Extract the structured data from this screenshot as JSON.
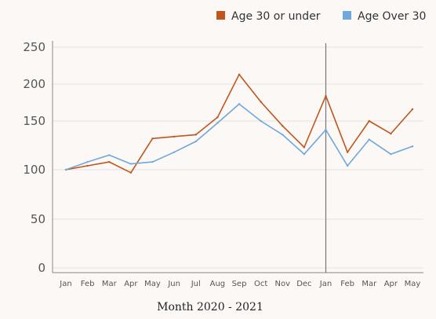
{
  "chart_data": {
    "type": "line",
    "xlabel": "Month 2020 - 2021",
    "categories": [
      "Jan",
      "Feb",
      "Mar",
      "Apr",
      "May",
      "Jun",
      "Jul",
      "Aug",
      "Sep",
      "Oct",
      "Nov",
      "Dec",
      "Jan",
      "Feb",
      "Mar",
      "Apr",
      "May"
    ],
    "y_ticks": [
      "0",
      "50",
      "100",
      "150",
      "200",
      "250"
    ],
    "y_tick_values": [
      0,
      50,
      100,
      150,
      200,
      250
    ],
    "ylim": [
      0,
      250
    ],
    "grid": true,
    "legend_position": "top-right",
    "series": [
      {
        "name": "Age 30 or under",
        "color": "#c0561d",
        "values": [
          100,
          104,
          108,
          97,
          132,
          134,
          136,
          155,
          213,
          176,
          145,
          123,
          184,
          118,
          150,
          137,
          166
        ]
      },
      {
        "name": "Age Over 30",
        "color": "#6fa8dc",
        "values": [
          100,
          108,
          115,
          106,
          108,
          118,
          129,
          148,
          173,
          150,
          136,
          116,
          141,
          104,
          131,
          116,
          124
        ]
      }
    ],
    "annotations": [
      {
        "type": "vertical-line",
        "category_index": 12
      }
    ]
  }
}
